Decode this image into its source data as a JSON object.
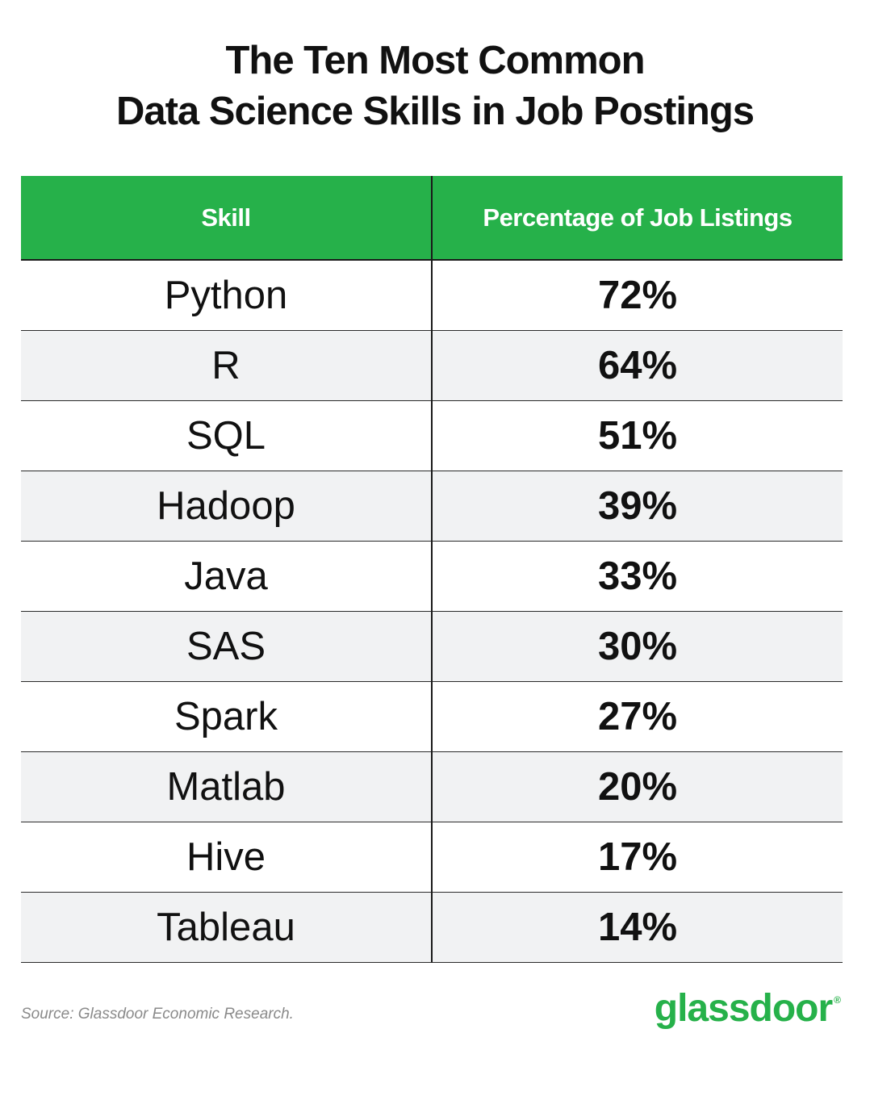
{
  "title_lines": [
    "The Ten Most Common",
    "Data Science Skills in Job Postings"
  ],
  "colors": {
    "header_bg": "#26b14a",
    "header_text": "#ffffff",
    "row_alt_bg": "#f1f2f3",
    "brand_green": "#26b14a",
    "source_text": "#8a8a8a"
  },
  "chart_data": {
    "type": "table",
    "title": "The Ten Most Common Data Science Skills in Job Postings",
    "columns": [
      "Skill",
      "Percentage of Job Listings"
    ],
    "rows": [
      {
        "skill": "Python",
        "percentage": "72%",
        "value": 72
      },
      {
        "skill": "R",
        "percentage": "64%",
        "value": 64
      },
      {
        "skill": "SQL",
        "percentage": "51%",
        "value": 51
      },
      {
        "skill": "Hadoop",
        "percentage": "39%",
        "value": 39
      },
      {
        "skill": "Java",
        "percentage": "33%",
        "value": 33
      },
      {
        "skill": "SAS",
        "percentage": "30%",
        "value": 30
      },
      {
        "skill": "Spark",
        "percentage": "27%",
        "value": 27
      },
      {
        "skill": "Matlab",
        "percentage": "20%",
        "value": 20
      },
      {
        "skill": "Hive",
        "percentage": "17%",
        "value": 17
      },
      {
        "skill": "Tableau",
        "percentage": "14%",
        "value": 14
      }
    ]
  },
  "footer": {
    "source": "Source: Glassdoor Economic Research.",
    "logo_text": "glassdoor",
    "logo_mark": "®"
  }
}
